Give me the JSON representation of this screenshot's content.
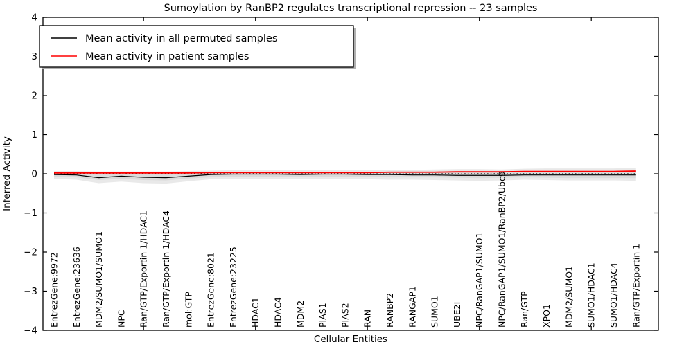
{
  "title": "Sumoylation by RanBP2 regulates transcriptional repression -- 23 samples",
  "axes": {
    "ylabel": "Inferred Activity",
    "xlabel": "Cellular Entities",
    "yticks": [
      {
        "label": "4",
        "value": 4
      },
      {
        "label": "3",
        "value": 3
      },
      {
        "label": "2",
        "value": 2
      },
      {
        "label": "1",
        "value": 1
      },
      {
        "label": "0",
        "value": 0
      },
      {
        "label": "−1",
        "value": -1
      },
      {
        "label": "−2",
        "value": -2
      },
      {
        "label": "−3",
        "value": -3
      },
      {
        "label": "−4",
        "value": -4
      }
    ]
  },
  "legend": {
    "entries": [
      {
        "label": "Mean activity in all permuted samples",
        "color": "#000000"
      },
      {
        "label": "Mean activity in patient samples",
        "color": "#ff0000"
      }
    ]
  },
  "chart_data": {
    "type": "line",
    "title": "Sumoylation by RanBP2 regulates transcriptional repression -- 23 samples",
    "xlabel": "Cellular Entities",
    "ylabel": "Inferred Activity",
    "ylim": [
      -4,
      4
    ],
    "grid": false,
    "legend_position": "upper left",
    "categories": [
      "EntrezGene:9972",
      "EntrezGene:23636",
      "MDM2/SUMO1/SUMO1",
      "NPC",
      "Ran/GTP/Exportin 1/HDAC1",
      "Ran/GTP/Exportin 1/HDAC4",
      "mol:GTP",
      "EntrezGene:8021",
      "EntrezGene:23225",
      "HDAC1",
      "HDAC4",
      "MDM2",
      "PIAS1",
      "PIAS2",
      "RAN",
      "RANBP2",
      "RANGAP1",
      "SUMO1",
      "UBE2I",
      "NPC/RanGAP1/SUMO1",
      "NPC/RanGAP1/SUMO1/RanBP2/Ubc9",
      "Ran/GTP",
      "XPO1",
      "MDM2/SUMO1",
      "SUMO1/HDAC1",
      "SUMO1/HDAC4",
      "Ran/GTP/Exportin 1"
    ],
    "x_major_tick_indices": [
      4,
      9,
      14,
      19,
      24
    ],
    "series": [
      {
        "name": "Mean activity in all permuted samples",
        "color": "#000000",
        "width": 1.2,
        "values": [
          -0.02,
          -0.03,
          -0.1,
          -0.06,
          -0.09,
          -0.1,
          -0.06,
          -0.02,
          -0.01,
          -0.01,
          -0.01,
          -0.02,
          -0.01,
          -0.01,
          -0.02,
          -0.02,
          -0.03,
          -0.03,
          -0.04,
          -0.04,
          -0.04,
          -0.03,
          -0.03,
          -0.03,
          -0.03,
          -0.03,
          -0.03
        ]
      },
      {
        "name": "Mean activity in patient samples",
        "color": "#ff0000",
        "width": 1.8,
        "values": [
          0.02,
          0.02,
          0.02,
          0.02,
          0.02,
          0.02,
          0.02,
          0.03,
          0.03,
          0.03,
          0.03,
          0.03,
          0.03,
          0.03,
          0.03,
          0.04,
          0.04,
          0.04,
          0.05,
          0.05,
          0.05,
          0.06,
          0.06,
          0.06,
          0.06,
          0.06,
          0.07
        ]
      }
    ],
    "reference_line": {
      "y": 0,
      "style": "dotted",
      "color": "#000000"
    },
    "bands": [
      {
        "name": "permuted-range-outer",
        "color": "#e9e9e9",
        "upper": [
          0.07,
          0.07,
          0.06,
          0.06,
          0.06,
          0.06,
          0.07,
          0.08,
          0.09,
          0.09,
          0.09,
          0.09,
          0.09,
          0.09,
          0.09,
          0.1,
          0.1,
          0.11,
          0.12,
          0.12,
          0.11,
          0.13,
          0.14,
          0.14,
          0.14,
          0.14,
          0.15
        ],
        "lower": [
          -0.13,
          -0.15,
          -0.24,
          -0.2,
          -0.24,
          -0.25,
          -0.19,
          -0.14,
          -0.13,
          -0.13,
          -0.13,
          -0.14,
          -0.13,
          -0.13,
          -0.14,
          -0.15,
          -0.15,
          -0.16,
          -0.17,
          -0.18,
          -0.17,
          -0.15,
          -0.16,
          -0.17,
          -0.17,
          -0.17,
          -0.18
        ]
      },
      {
        "name": "permuted-range-inner",
        "color": "#dbdbdb",
        "upper": [
          0.04,
          0.04,
          0.03,
          0.03,
          0.03,
          0.03,
          0.04,
          0.04,
          0.05,
          0.05,
          0.05,
          0.05,
          0.05,
          0.05,
          0.05,
          0.06,
          0.06,
          0.06,
          0.07,
          0.07,
          0.06,
          0.07,
          0.08,
          0.08,
          0.08,
          0.08,
          0.09
        ],
        "lower": [
          -0.08,
          -0.09,
          -0.16,
          -0.13,
          -0.16,
          -0.17,
          -0.12,
          -0.09,
          -0.07,
          -0.07,
          -0.07,
          -0.08,
          -0.07,
          -0.07,
          -0.08,
          -0.09,
          -0.09,
          -0.09,
          -0.1,
          -0.11,
          -0.1,
          -0.09,
          -0.1,
          -0.11,
          -0.11,
          -0.11,
          -0.11
        ]
      }
    ]
  }
}
